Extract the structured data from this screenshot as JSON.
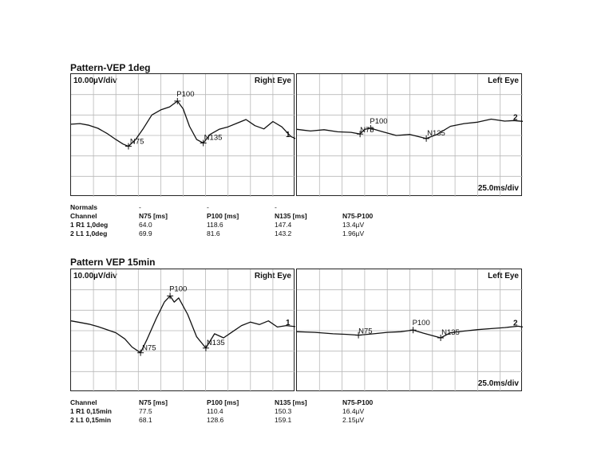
{
  "tests": [
    {
      "title": "Pattern-VEP 1deg",
      "scale_label": "10.00µV/div",
      "time_label": "25.0ms/div",
      "right_eye": "Right Eye",
      "left_eye": "Left Eye",
      "normals": {
        "label": "Normals",
        "values": [
          "-",
          "-",
          "-"
        ]
      },
      "table": {
        "headers": [
          "Channel",
          "N75 [ms]",
          "P100 [ms]",
          "N135 [ms]",
          "N75-P100"
        ],
        "rows": [
          [
            "1 R1 1,0deg",
            "64.0",
            "118.6",
            "147.4",
            "13.4µV"
          ],
          [
            "2 L1 1,0deg",
            "69.9",
            "81.6",
            "143.2",
            "1.96µV"
          ]
        ]
      }
    },
    {
      "title": "Pattern VEP 15min",
      "scale_label": "10.00µV/div",
      "time_label": "25.0ms/div",
      "right_eye": "Right Eye",
      "left_eye": "Left Eye",
      "table": {
        "headers": [
          "Channel",
          "N75 [ms]",
          "P100 [ms]",
          "N135 [ms]",
          "N75-P100"
        ],
        "rows": [
          [
            "1 R1 0,15min",
            "77.5",
            "110.4",
            "150.3",
            "16.4µV"
          ],
          [
            "2 L1 0,15min",
            "68.1",
            "128.6",
            "159.1",
            "2.15µV"
          ]
        ]
      }
    }
  ],
  "chart_data": [
    {
      "type": "line",
      "title": "Pattern-VEP 1deg — Right Eye",
      "xlabel": "",
      "ylabel": "",
      "x_unit": "ms",
      "y_unit": "µV",
      "xlim": [
        0,
        250
      ],
      "ylim": [
        -30,
        30
      ],
      "grid": true,
      "series": [
        {
          "name": "1",
          "x": [
            0,
            10,
            20,
            30,
            40,
            50,
            58,
            64,
            72,
            80,
            90,
            100,
            110,
            118.6,
            125,
            132,
            140,
            147.4,
            155,
            165,
            175,
            185,
            195,
            205,
            215,
            225,
            235,
            245,
            250
          ],
          "y": [
            5.5,
            5.8,
            5.0,
            3.5,
            1.0,
            -2.0,
            -4.2,
            -5.3,
            -2.0,
            3.0,
            10.0,
            12.5,
            14.0,
            16.8,
            13.0,
            4.5,
            -2.0,
            -3.7,
            0.5,
            3.0,
            4.2,
            6.0,
            7.8,
            4.8,
            3.2,
            6.8,
            4.2,
            -0.5,
            -1.5
          ]
        }
      ],
      "annotations": [
        {
          "label": "N75",
          "x": 64.0,
          "y": -5.3
        },
        {
          "label": "P100",
          "x": 118.6,
          "y": 16.8
        },
        {
          "label": "N135",
          "x": 147.4,
          "y": -3.7
        }
      ],
      "end_label": "1"
    },
    {
      "type": "line",
      "title": "Pattern-VEP 1deg — Left Eye",
      "xlabel": "",
      "ylabel": "",
      "x_unit": "ms",
      "y_unit": "µV",
      "xlim": [
        0,
        250
      ],
      "ylim": [
        -30,
        30
      ],
      "grid": true,
      "series": [
        {
          "name": "2",
          "x": [
            0,
            15,
            30,
            45,
            60,
            69.9,
            75,
            81.6,
            95,
            110,
            125,
            143.2,
            155,
            170,
            185,
            200,
            215,
            230,
            240,
            250
          ],
          "y": [
            3.0,
            2.2,
            2.8,
            1.8,
            1.5,
            0.7,
            3.0,
            3.5,
            1.8,
            0.0,
            0.5,
            -1.5,
            0.5,
            4.5,
            5.8,
            6.5,
            8.0,
            7.0,
            7.3,
            6.9
          ]
        }
      ],
      "annotations": [
        {
          "label": "N75",
          "x": 69.9,
          "y": 0.7
        },
        {
          "label": "P100",
          "x": 81.6,
          "y": 3.5
        },
        {
          "label": "N135",
          "x": 143.2,
          "y": -1.5
        }
      ],
      "end_label": "2"
    },
    {
      "type": "line",
      "title": "Pattern VEP 15min — Right Eye",
      "xlabel": "",
      "ylabel": "",
      "x_unit": "ms",
      "y_unit": "µV",
      "xlim": [
        0,
        250
      ],
      "ylim": [
        -30,
        30
      ],
      "grid": true,
      "series": [
        {
          "name": "1",
          "x": [
            0,
            10,
            20,
            30,
            40,
            50,
            60,
            68,
            77.5,
            85,
            95,
            104,
            110.4,
            115,
            120,
            130,
            140,
            150.3,
            160,
            170,
            180,
            190,
            200,
            210,
            220,
            230,
            240,
            250
          ],
          "y": [
            4.8,
            4.0,
            3.2,
            2.0,
            0.5,
            -1.0,
            -4.0,
            -8.0,
            -10.8,
            -4.0,
            6.0,
            14.0,
            17.0,
            14.0,
            16.0,
            8.0,
            -3.0,
            -8.5,
            -1.5,
            -3.5,
            -0.5,
            2.5,
            4.2,
            3.0,
            4.8,
            1.8,
            2.5,
            2.0
          ]
        }
      ],
      "annotations": [
        {
          "label": "N75",
          "x": 77.5,
          "y": -10.8
        },
        {
          "label": "P100",
          "x": 110.4,
          "y": 17.0
        },
        {
          "label": "N135",
          "x": 150.3,
          "y": -8.5
        }
      ],
      "end_label": "1"
    },
    {
      "type": "line",
      "title": "Pattern VEP 15min — Left Eye",
      "xlabel": "",
      "ylabel": "",
      "x_unit": "ms",
      "y_unit": "µV",
      "xlim": [
        0,
        250
      ],
      "ylim": [
        -30,
        30
      ],
      "grid": true,
      "series": [
        {
          "name": "2",
          "x": [
            0,
            20,
            40,
            55,
            68.1,
            85,
            100,
            115,
            128.6,
            140,
            159.1,
            170,
            185,
            200,
            215,
            230,
            245,
            250
          ],
          "y": [
            -0.5,
            -0.8,
            -1.5,
            -1.8,
            -2.2,
            -1.5,
            -0.8,
            -0.5,
            0.3,
            -1.2,
            -3.5,
            -1.0,
            -0.2,
            0.5,
            1.0,
            1.5,
            2.2,
            1.8
          ]
        }
      ],
      "annotations": [
        {
          "label": "N75",
          "x": 68.1,
          "y": -2.2
        },
        {
          "label": "P100",
          "x": 128.6,
          "y": 0.3
        },
        {
          "label": "N135",
          "x": 159.1,
          "y": -3.5
        }
      ],
      "end_label": "2"
    }
  ]
}
